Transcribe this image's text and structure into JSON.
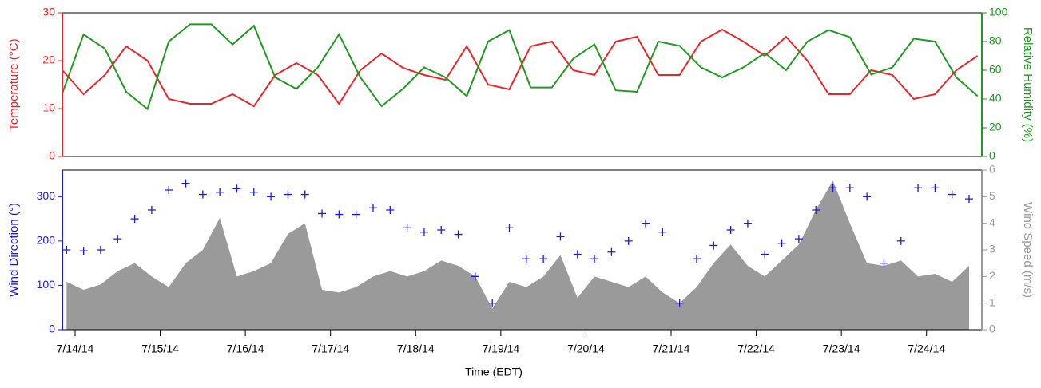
{
  "chart_data": [
    {
      "type": "line",
      "ylabel": "Temperature (°C)",
      "y2label": "Relative Humidity (%)",
      "x": [
        -0.15,
        0.1,
        0.35,
        0.6,
        0.85,
        1.1,
        1.35,
        1.6,
        1.85,
        2.1,
        2.35,
        2.6,
        2.85,
        3.1,
        3.35,
        3.6,
        3.85,
        4.1,
        4.35,
        4.6,
        4.85,
        5.1,
        5.35,
        5.6,
        5.85,
        6.1,
        6.35,
        6.6,
        6.85,
        7.1,
        7.35,
        7.6,
        7.85,
        8.1,
        8.35,
        8.6,
        8.85,
        9.1,
        9.35,
        9.6,
        9.85,
        10.1,
        10.35,
        10.6
      ],
      "xlim": [
        -0.15,
        10.65
      ],
      "ylim": [
        0,
        30
      ],
      "yticks": [
        0,
        10,
        20,
        30
      ],
      "y2lim": [
        0,
        100
      ],
      "y2ticks": [
        0,
        20,
        40,
        60,
        80,
        100
      ],
      "series": [
        {
          "name": "Temperature",
          "color": "#e8262a",
          "axis": "y",
          "values": [
            18,
            13,
            17,
            23,
            20,
            12,
            11,
            11,
            13,
            10.5,
            17,
            19.5,
            17,
            11,
            18,
            21.5,
            18.5,
            17,
            16,
            23,
            15,
            14,
            23,
            24,
            18,
            17,
            24,
            25,
            17,
            17,
            24,
            26.5,
            24,
            21,
            25,
            20,
            13,
            13,
            18,
            17,
            12,
            13,
            18,
            21
          ]
        },
        {
          "name": "Relative Humidity",
          "color": "#1e9a1e",
          "axis": "y2",
          "values": [
            44,
            85,
            75,
            45,
            33,
            80,
            92,
            92,
            78,
            91,
            55,
            47,
            62,
            85,
            55,
            35,
            47,
            62,
            55,
            42,
            80,
            88,
            48,
            48,
            68,
            78,
            46,
            45,
            80,
            77,
            62,
            55,
            62,
            72,
            60,
            80,
            88,
            83,
            57,
            62,
            82,
            80,
            55,
            42
          ]
        }
      ]
    },
    {
      "type": "scatter",
      "ylabel": "Wind Direction (°)",
      "y2label": "Wind Speed (m/s)",
      "xlabel": "Time (EDT)",
      "x": [
        -0.1,
        0.1,
        0.3,
        0.5,
        0.7,
        0.9,
        1.1,
        1.3,
        1.5,
        1.7,
        1.9,
        2.1,
        2.3,
        2.5,
        2.7,
        2.9,
        3.1,
        3.3,
        3.5,
        3.7,
        3.9,
        4.1,
        4.3,
        4.5,
        4.7,
        4.9,
        5.1,
        5.3,
        5.5,
        5.7,
        5.9,
        6.1,
        6.3,
        6.5,
        6.7,
        6.9,
        7.1,
        7.3,
        7.5,
        7.7,
        7.9,
        8.1,
        8.3,
        8.5,
        8.7,
        8.9,
        9.1,
        9.3,
        9.5,
        9.7,
        9.9,
        10.1,
        10.3,
        10.5
      ],
      "xlim": [
        -0.15,
        10.65
      ],
      "xticks": [
        {
          "value": 0,
          "label": "7/14/14"
        },
        {
          "value": 1,
          "label": "7/15/14"
        },
        {
          "value": 2,
          "label": "7/16/14"
        },
        {
          "value": 3,
          "label": "7/17/14"
        },
        {
          "value": 4,
          "label": "7/18/14"
        },
        {
          "value": 5,
          "label": "7/19/14"
        },
        {
          "value": 6,
          "label": "7/20/14"
        },
        {
          "value": 7,
          "label": "7/21/14"
        },
        {
          "value": 8,
          "label": "7/22/14"
        },
        {
          "value": 9,
          "label": "7/23/14"
        },
        {
          "value": 10,
          "label": "7/24/14"
        }
      ],
      "ylim": [
        0,
        360
      ],
      "yticks": [
        0,
        100,
        200,
        300
      ],
      "y2lim": [
        0,
        6
      ],
      "y2ticks": [
        0,
        1,
        2,
        3,
        4,
        5,
        6
      ],
      "series": [
        {
          "name": "Wind Speed",
          "type": "area",
          "color": "#9a9a9a",
          "axis": "y2",
          "values": [
            1.8,
            1.5,
            1.7,
            2.2,
            2.5,
            2.0,
            1.6,
            2.5,
            3.0,
            4.2,
            2.0,
            2.2,
            2.5,
            3.6,
            4.0,
            1.5,
            1.4,
            1.6,
            2.0,
            2.2,
            2.0,
            2.2,
            2.6,
            2.4,
            2.0,
            0.8,
            1.8,
            1.6,
            2.0,
            2.8,
            1.2,
            2.0,
            1.8,
            1.6,
            2.0,
            1.4,
            1.0,
            1.6,
            2.5,
            3.2,
            2.4,
            2.0,
            2.6,
            3.2,
            4.5,
            5.6,
            4.0,
            2.5,
            2.4,
            2.6,
            2.0,
            2.1,
            1.8,
            2.4
          ]
        },
        {
          "name": "Wind Direction",
          "type": "scatter",
          "color": "#1a1adf",
          "axis": "y",
          "values": [
            180,
            178,
            180,
            205,
            250,
            270,
            315,
            330,
            305,
            310,
            318,
            310,
            300,
            305,
            305,
            262,
            260,
            260,
            275,
            270,
            230,
            220,
            225,
            215,
            120,
            60,
            230,
            160,
            160,
            210,
            170,
            160,
            175,
            200,
            240,
            220,
            60,
            160,
            190,
            225,
            240,
            170,
            195,
            205,
            270,
            320,
            320,
            300,
            150,
            200,
            320,
            320,
            305,
            295
          ]
        }
      ]
    }
  ]
}
